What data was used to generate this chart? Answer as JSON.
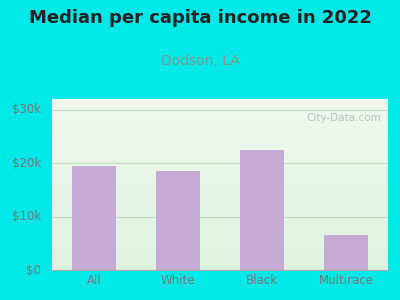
{
  "title": "Median per capita income in 2022",
  "subtitle": "Dodson, LA",
  "categories": [
    "All",
    "White",
    "Black",
    "Multirace"
  ],
  "values": [
    19500,
    18500,
    22500,
    6500
  ],
  "bar_color": "#c4aad4",
  "title_fontsize": 13,
  "subtitle_fontsize": 10,
  "subtitle_color": "#7a9a8a",
  "title_color": "#222222",
  "bg_outer": "#00e8e8",
  "ylim": [
    0,
    32000
  ],
  "yticks": [
    0,
    10000,
    20000,
    30000
  ],
  "ylabel_labels": [
    "$0",
    "$10k",
    "$20k",
    "$30k"
  ],
  "tick_color": "#777777",
  "watermark": "City-Data.com",
  "grid_color": "#c0ddc0",
  "plot_bg_top": "#eaf5ea",
  "plot_bg_bottom": "#c8eee0"
}
